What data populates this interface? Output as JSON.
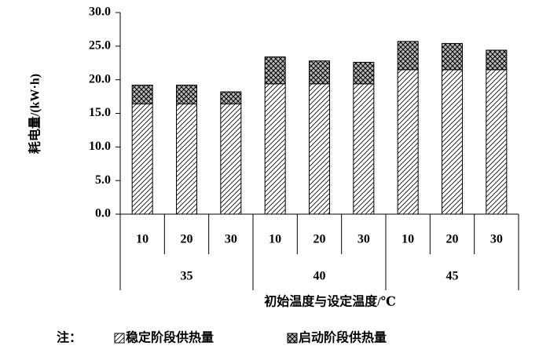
{
  "chart_data": {
    "type": "stacked_bar",
    "y_label": "耗电量/(kW·h)",
    "x_label": "初始温度与设定温度/℃",
    "categories": [
      "10",
      "20",
      "30",
      "10",
      "20",
      "30",
      "10",
      "20",
      "30"
    ],
    "groups": [
      "35",
      "40",
      "45"
    ],
    "series": [
      {
        "name": "稳定阶段供热量",
        "color": "#000000",
        "pattern": "hatch",
        "values": [
          16.4,
          16.4,
          16.4,
          19.4,
          19.4,
          19.4,
          21.5,
          21.5,
          21.5
        ]
      },
      {
        "name": "启动阶段供热量",
        "color": "#000000",
        "pattern": "crosshatch",
        "values": [
          2.8,
          2.8,
          1.8,
          4.0,
          3.4,
          3.2,
          4.2,
          3.9,
          2.9
        ]
      }
    ],
    "ylim": [
      0,
      30
    ],
    "yticks": [
      {
        "value": 0,
        "label": "0.0"
      },
      {
        "value": 5,
        "label": "5.0"
      },
      {
        "value": 10,
        "label": "10.0"
      },
      {
        "value": 15,
        "label": "15.0"
      },
      {
        "value": 20,
        "label": "20.0"
      },
      {
        "value": 25,
        "label": "25.0"
      },
      {
        "value": 30,
        "label": "30.0"
      }
    ],
    "legend_note": "注："
  }
}
